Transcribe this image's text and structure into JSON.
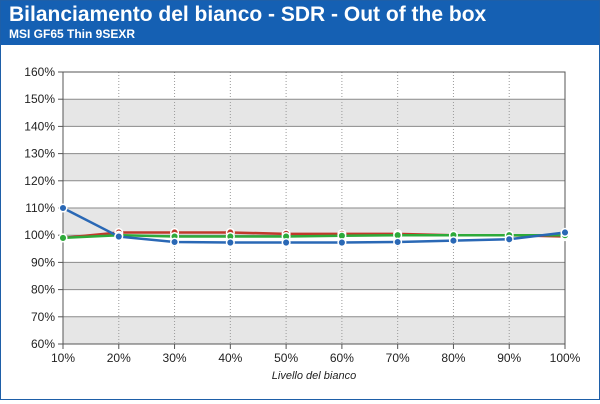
{
  "header": {
    "title": "Bilanciamento del bianco - SDR - Out of the box",
    "subtitle": "MSI GF65 Thin 9SEXR"
  },
  "colors": {
    "header_bg": "#1560b3",
    "band_light": "#ffffff",
    "band_dark": "#e6e6e6",
    "red": "#c0392b",
    "green": "#2eaa3a",
    "blue": "#2a68b5"
  },
  "chart_data": {
    "type": "line",
    "xlabel": "Livello del bianco",
    "ylabel": "",
    "categories": [
      "10%",
      "20%",
      "30%",
      "40%",
      "50%",
      "60%",
      "70%",
      "80%",
      "90%",
      "100%"
    ],
    "ylim": [
      60,
      160
    ],
    "yticks": [
      60,
      70,
      80,
      90,
      100,
      110,
      120,
      130,
      140,
      150,
      160
    ],
    "ytick_labels": [
      "60%",
      "70%",
      "80%",
      "90%",
      "100%",
      "110%",
      "120%",
      "130%",
      "140%",
      "150%",
      "160%"
    ],
    "grid": true,
    "series": [
      {
        "color": "#c0392b",
        "values": [
          99,
          101,
          101,
          101,
          100.5,
          100.5,
          100.5,
          100,
          100,
          99.5
        ]
      },
      {
        "color": "#2eaa3a",
        "values": [
          99,
          100,
          99.5,
          99.5,
          99.5,
          99.8,
          100,
          100,
          100,
          100
        ]
      },
      {
        "color": "#2a68b5",
        "values": [
          110,
          99.5,
          97.5,
          97.3,
          97.3,
          97.3,
          97.5,
          98,
          98.5,
          101
        ]
      }
    ]
  }
}
